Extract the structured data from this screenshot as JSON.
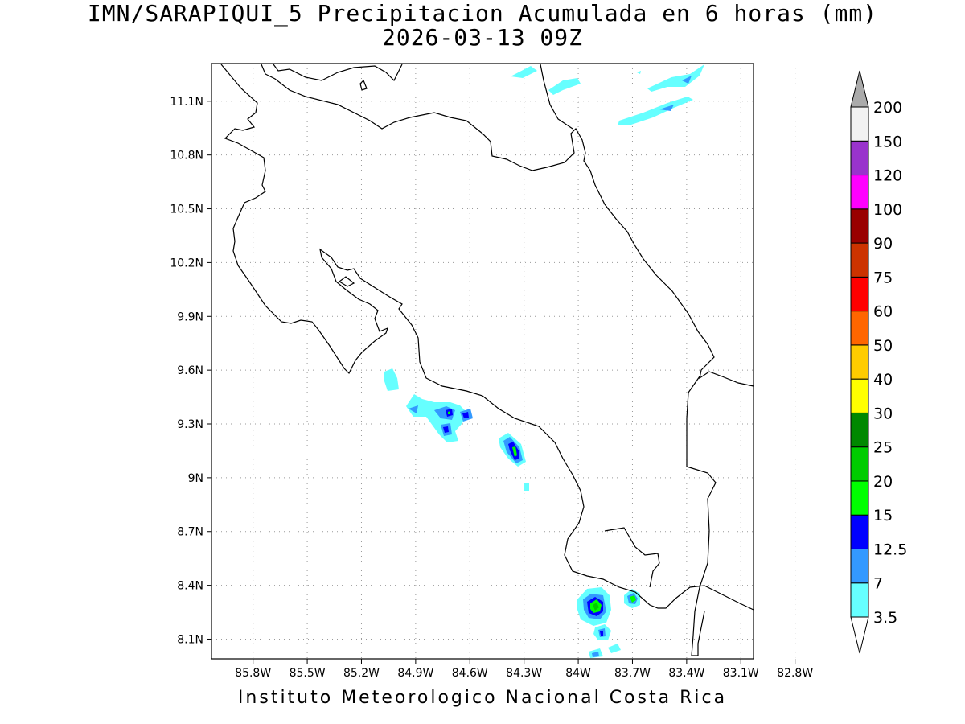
{
  "title": {
    "line1": "IMN/SARAPIQUI_5 Precipitacion Acumulada en 6 horas (mm)",
    "line2": "2026-03-13 09Z"
  },
  "footer": "Instituto Meteorologico Nacional Costa Rica",
  "map": {
    "lon_range": [
      -86.03,
      -83.03
    ],
    "lat_range": [
      7.99,
      11.31
    ],
    "x_ticks": [
      {
        "value": -85.8,
        "label": "85.8W"
      },
      {
        "value": -85.5,
        "label": "85.5W"
      },
      {
        "value": -85.2,
        "label": "85.2W"
      },
      {
        "value": -84.9,
        "label": "84.9W"
      },
      {
        "value": -84.6,
        "label": "84.6W"
      },
      {
        "value": -84.3,
        "label": "84.3W"
      },
      {
        "value": -84.0,
        "label": "84W"
      },
      {
        "value": -83.7,
        "label": "83.7W"
      },
      {
        "value": -83.4,
        "label": "83.4W"
      },
      {
        "value": -83.1,
        "label": "83.1W"
      },
      {
        "value": -82.8,
        "label": "82.8W"
      }
    ],
    "y_ticks": [
      {
        "value": 8.1,
        "label": "8.1N"
      },
      {
        "value": 8.4,
        "label": "8.4N"
      },
      {
        "value": 8.7,
        "label": "8.7N"
      },
      {
        "value": 9.0,
        "label": "9N"
      },
      {
        "value": 9.3,
        "label": "9.3N"
      },
      {
        "value": 9.6,
        "label": "9.6N"
      },
      {
        "value": 9.9,
        "label": "9.9N"
      },
      {
        "value": 10.2,
        "label": "10.2N"
      },
      {
        "value": 10.5,
        "label": "10.5N"
      },
      {
        "value": 10.8,
        "label": "10.8N"
      },
      {
        "value": 11.1,
        "label": "11.1N"
      }
    ],
    "grid": true
  },
  "colorbar": {
    "levels": [
      {
        "label": "3.5",
        "color": "#66ffff"
      },
      {
        "label": "7",
        "color": "#3399ff"
      },
      {
        "label": "12.5",
        "color": "#0000ff"
      },
      {
        "label": "15",
        "color": "#00ff00"
      },
      {
        "label": "20",
        "color": "#00cc00"
      },
      {
        "label": "25",
        "color": "#008800"
      },
      {
        "label": "30",
        "color": "#ffff00"
      },
      {
        "label": "40",
        "color": "#ffcc00"
      },
      {
        "label": "50",
        "color": "#ff6600"
      },
      {
        "label": "60",
        "color": "#ff0000"
      },
      {
        "label": "75",
        "color": "#cc3300"
      },
      {
        "label": "90",
        "color": "#990000"
      },
      {
        "label": "100",
        "color": "#ff00ff"
      },
      {
        "label": "120",
        "color": "#9933cc"
      },
      {
        "label": "150",
        "color": "#f2f2f2"
      },
      {
        "label": "200",
        "color": "#aaaaaa"
      }
    ],
    "under_color": "#ffffff",
    "over_color": "#aaaaaa"
  }
}
